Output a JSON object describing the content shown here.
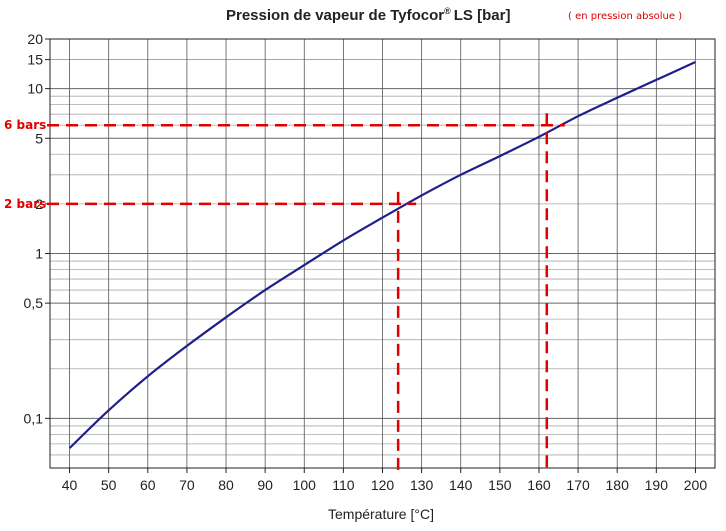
{
  "chart_data": {
    "type": "line",
    "title": "Pression de vapeur de Tyfocor",
    "title_superscript": "®",
    "title_suffix": "LS [bar]",
    "note": "( en pression  absolue )",
    "xlabel": "Température [°C]",
    "ylabel": "",
    "x_scale": "linear",
    "y_scale": "log",
    "xlim": [
      35,
      205
    ],
    "ylim": [
      0.05,
      20
    ],
    "x_ticks": [
      40,
      50,
      60,
      70,
      80,
      90,
      100,
      110,
      120,
      130,
      140,
      150,
      160,
      170,
      180,
      190,
      200
    ],
    "y_ticks": [
      {
        "value": 20,
        "label": "20"
      },
      {
        "value": 15,
        "label": "15"
      },
      {
        "value": 10,
        "label": "10"
      },
      {
        "value": 5,
        "label": "5"
      },
      {
        "value": 2,
        "label": "2"
      },
      {
        "value": 1,
        "label": "1"
      },
      {
        "value": 0.5,
        "label": "0,5"
      },
      {
        "value": 0.1,
        "label": "0,1"
      }
    ],
    "grid": true,
    "line_color": "#1f1f8c",
    "annotation_color": "#e00000",
    "series": [
      {
        "x": [
          40,
          50,
          60,
          70,
          80,
          90,
          100,
          110,
          120,
          130,
          140,
          150,
          160,
          170,
          180,
          190,
          200
        ],
        "y": [
          0.066,
          0.112,
          0.18,
          0.275,
          0.41,
          0.6,
          0.85,
          1.2,
          1.65,
          2.25,
          3.0,
          3.9,
          5.1,
          6.8,
          8.8,
          11.3,
          14.5
        ]
      }
    ],
    "annotations": [
      {
        "label": "2 bars",
        "pressure": 2,
        "temperature": 124
      },
      {
        "label": "6 bars",
        "pressure": 6,
        "temperature": 162
      }
    ]
  }
}
